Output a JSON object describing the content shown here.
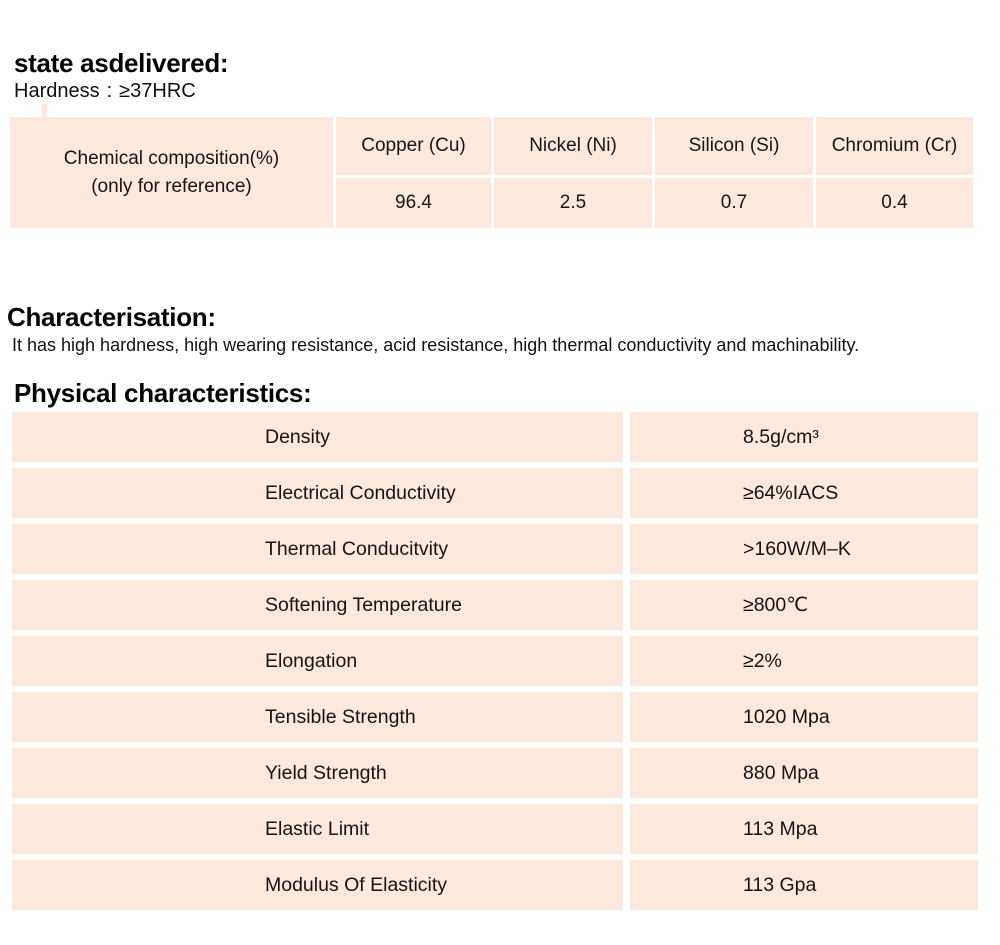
{
  "colors": {
    "table_bg": "#fce8dc",
    "page_bg": "#ffffff",
    "text": "#151515"
  },
  "state_section": {
    "title": "state asdelivered:",
    "hardness_label": "Hardness",
    "hardness_colon": ":",
    "hardness_value": "≥37HRC"
  },
  "composition_table": {
    "row_header_line1": "Chemical composition(%)",
    "row_header_line2": "(only for reference)",
    "columns": [
      {
        "label": "Copper (Cu)",
        "value": "96.4"
      },
      {
        "label": "Nickel (Ni)",
        "value": "2.5"
      },
      {
        "label": "Silicon (Si)",
        "value": "0.7"
      },
      {
        "label": "Chromium (Cr)",
        "value": "0.4"
      }
    ]
  },
  "characterisation": {
    "title": "Characterisation:",
    "text": "It has high hardness, high wearing resistance, acid resistance, high thermal conductivity and machinability."
  },
  "physical": {
    "title": "Physical characteristics:",
    "rows": [
      {
        "label": "Density",
        "value": "8.5g/cm³"
      },
      {
        "label": "Electrical Conductivity",
        "value": "≥64%IACS"
      },
      {
        "label": "Thermal Conducitvity",
        "value": ">160W/M–K"
      },
      {
        "label": "Softening Temperature",
        "value": "≥800℃"
      },
      {
        "label": "Elongation",
        "value": "≥2%"
      },
      {
        "label": "Tensible Strength",
        "value": "1020 Mpa"
      },
      {
        "label": "Yield Strength",
        "value": "880 Mpa"
      },
      {
        "label": "Elastic Limit",
        "value": "113 Mpa"
      },
      {
        "label": "Modulus Of Elasticity",
        "value": "113 Gpa"
      }
    ]
  }
}
